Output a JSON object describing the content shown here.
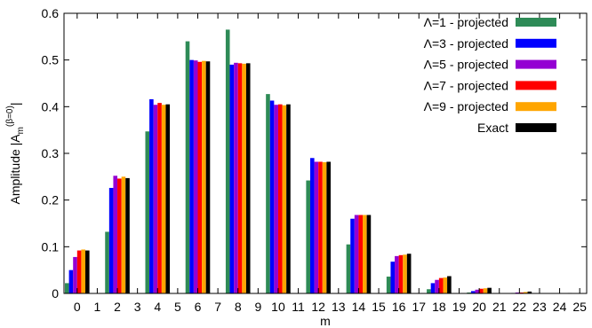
{
  "chart_data": {
    "type": "bar",
    "title": "",
    "xlabel": "m",
    "ylabel_main": "Amplitude |A",
    "ylabel_sub": "m",
    "ylabel_sup": "(β=0)",
    "ylabel_end": "|",
    "ylim": [
      0,
      0.6
    ],
    "yticks": [
      "0",
      "0.1",
      "0.2",
      "0.3",
      "0.4",
      "0.5",
      "0.6"
    ],
    "categories": [
      "0",
      "1",
      "2",
      "3",
      "4",
      "5",
      "6",
      "7",
      "8",
      "9",
      "10",
      "11",
      "12",
      "13",
      "14",
      "15",
      "16",
      "17",
      "18",
      "19",
      "20",
      "21",
      "22",
      "23",
      "24",
      "25"
    ],
    "grid": false,
    "legend_position": "top-right",
    "series": [
      {
        "name": "Λ=1 - projected",
        "color": "#2e8b57",
        "values": [
          0.022,
          0,
          0.132,
          0,
          0.347,
          0,
          0.54,
          0,
          0.565,
          0,
          0.427,
          0,
          0.242,
          0,
          0.105,
          0,
          0.036,
          0,
          0.009,
          0,
          0.002,
          0,
          0.0003,
          0,
          0.0001,
          0
        ]
      },
      {
        "name": "Λ=3 - projected",
        "color": "#0000ff",
        "values": [
          0.05,
          0,
          0.226,
          0,
          0.416,
          0,
          0.5,
          0,
          0.49,
          0,
          0.413,
          0,
          0.29,
          0,
          0.16,
          0,
          0.068,
          0,
          0.022,
          0,
          0.005,
          0,
          0.001,
          0,
          0.0002,
          0
        ]
      },
      {
        "name": "Λ=5 - projected",
        "color": "#9400d3",
        "values": [
          0.078,
          0,
          0.252,
          0,
          0.404,
          0,
          0.499,
          0,
          0.494,
          0,
          0.404,
          0,
          0.282,
          0,
          0.168,
          0,
          0.08,
          0,
          0.029,
          0,
          0.008,
          0,
          0.002,
          0,
          0.0004,
          0
        ]
      },
      {
        "name": "Λ=7 - projected",
        "color": "#ff0000",
        "values": [
          0.092,
          0,
          0.246,
          0,
          0.408,
          0,
          0.496,
          0,
          0.493,
          0,
          0.405,
          0,
          0.282,
          0,
          0.168,
          0,
          0.082,
          0,
          0.033,
          0,
          0.01,
          0,
          0.002,
          0,
          0.0005,
          0
        ]
      },
      {
        "name": "Λ=9 - projected",
        "color": "#ffa500",
        "values": [
          0.094,
          0,
          0.25,
          0,
          0.404,
          0,
          0.498,
          0,
          0.492,
          0,
          0.403,
          0,
          0.281,
          0,
          0.168,
          0,
          0.083,
          0,
          0.034,
          0,
          0.011,
          0,
          0.003,
          0,
          0.0006,
          0
        ]
      },
      {
        "name": "Exact",
        "color": "#000000",
        "values": [
          0.092,
          0,
          0.247,
          0,
          0.405,
          0,
          0.497,
          0,
          0.493,
          0,
          0.405,
          0,
          0.282,
          0,
          0.168,
          0,
          0.085,
          0,
          0.037,
          0,
          0.012,
          0,
          0.004,
          0,
          0.001,
          0
        ]
      }
    ]
  }
}
